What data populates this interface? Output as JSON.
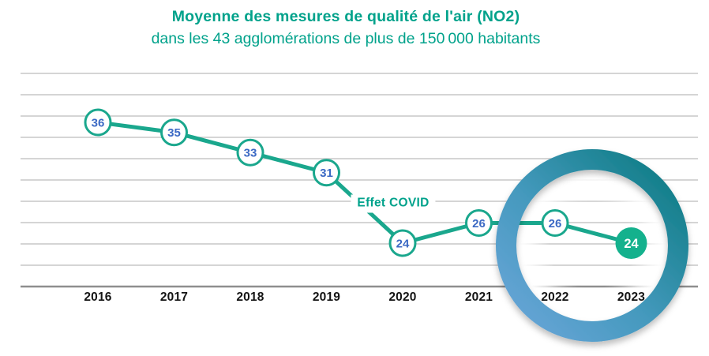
{
  "chart_data": {
    "type": "line",
    "title": "Moyenne des mesures de qualité de l'air (NO2)",
    "subtitle": "dans les 43 agglomérations de plus de 150 000 habitants",
    "categories": [
      "2016",
      "2017",
      "2018",
      "2019",
      "2020",
      "2021",
      "2022",
      "2023"
    ],
    "values": [
      36,
      35,
      33,
      31,
      24,
      26,
      26,
      24
    ],
    "annotation": {
      "label": "Effet COVID",
      "attached_between": [
        "2019",
        "2020"
      ]
    },
    "highlighted_categories": [
      "2022",
      "2023"
    ],
    "highlight_shape": "gradient-ring",
    "y_axis": {
      "baseline_value": 20,
      "gridline_min": 22,
      "gridline_max": 40,
      "gridline_step": 2,
      "tick_labels_visible": false
    },
    "grid": true,
    "legend": "none",
    "colors": {
      "title_teal": "#00a28b",
      "line_teal": "#1aa78d",
      "point_value_blue": "#3b69c4",
      "final_point_fill": "#14b18d",
      "final_point_text": "#ffffff",
      "gridline_gray": "#c7c7c7",
      "axis_gray": "#8e8e8e",
      "year_label_black": "#141414",
      "highlight_ring_gradient": [
        "#6ba6da",
        "#4499bd",
        "#0a7a80"
      ]
    }
  }
}
